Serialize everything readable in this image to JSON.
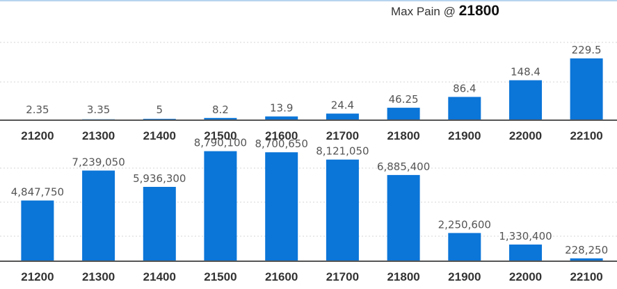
{
  "header": {
    "prefix": "Max Pain @",
    "value": "21800"
  },
  "chart_data": [
    {
      "type": "bar",
      "categories": [
        "21200",
        "21300",
        "21400",
        "21500",
        "21600",
        "21700",
        "21800",
        "21900",
        "22000",
        "22100"
      ],
      "values": [
        2.35,
        3.35,
        5,
        8.2,
        13.9,
        24.4,
        46.25,
        86.4,
        148.4,
        229.5
      ],
      "labels": [
        "2.35",
        "3.35",
        "5",
        "8.2",
        "13.9",
        "24.4",
        "46.25",
        "86.4",
        "148.4",
        "229.5"
      ],
      "ylim": [
        0,
        400
      ],
      "grid": true,
      "bar_color": "#0b75d8"
    },
    {
      "type": "bar",
      "categories": [
        "21200",
        "21300",
        "21400",
        "21500",
        "21600",
        "21700",
        "21800",
        "21900",
        "22000",
        "22100"
      ],
      "values": [
        4847750,
        7239050,
        5936300,
        8790100,
        8700650,
        8121050,
        6885400,
        2250600,
        1330400,
        228250
      ],
      "labels": [
        "4,847,750",
        "7,239,050",
        "5,936,300",
        "8,790,100",
        "8,700,650",
        "8,121,050",
        "6,885,400",
        "2,250,600",
        "1,330,400",
        "228,250"
      ],
      "ylim": [
        0,
        9600000
      ],
      "grid": true,
      "bar_color": "#0b75d8"
    }
  ]
}
